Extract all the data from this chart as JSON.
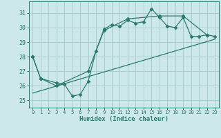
{
  "xlabel": "Humidex (Indice chaleur)",
  "background_color": "#cce8e8",
  "grid_color": "#aacccc",
  "line_color": "#2a7a6a",
  "xlim": [
    -0.5,
    23.5
  ],
  "ylim": [
    24.5,
    31.8
  ],
  "yticks": [
    25,
    26,
    27,
    28,
    29,
    30,
    31
  ],
  "xticks": [
    0,
    1,
    2,
    3,
    4,
    5,
    6,
    7,
    8,
    9,
    10,
    11,
    12,
    13,
    14,
    15,
    16,
    17,
    18,
    19,
    20,
    21,
    22,
    23
  ],
  "series1": [
    28.0,
    26.5,
    null,
    26.2,
    26.1,
    25.3,
    25.4,
    26.3,
    28.4,
    29.9,
    30.2,
    30.1,
    30.5,
    30.3,
    30.4,
    31.3,
    30.7,
    30.1,
    30.0,
    30.7,
    29.4,
    29.4,
    29.5,
    29.4
  ],
  "series2": [
    28.0,
    26.5,
    null,
    26.0,
    null,
    null,
    null,
    27.0,
    null,
    29.8,
    null,
    null,
    30.6,
    null,
    null,
    null,
    30.8,
    null,
    null,
    30.8,
    null,
    null,
    29.5,
    null
  ],
  "series3_x": [
    0,
    23
  ],
  "series3_y": [
    25.5,
    29.2
  ]
}
